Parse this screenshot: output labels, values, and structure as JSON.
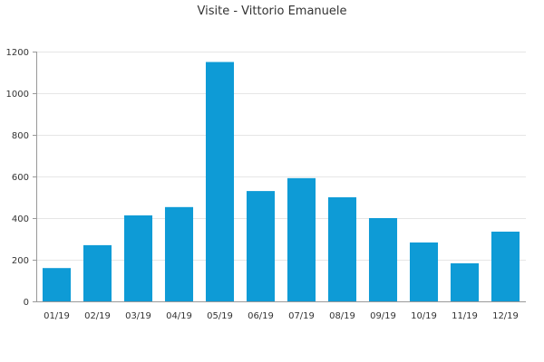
{
  "chart_data": {
    "type": "bar",
    "title": "Visite - Vittorio Emanuele",
    "xlabel": "",
    "ylabel": "",
    "categories": [
      "01/19",
      "02/19",
      "03/19",
      "04/19",
      "05/19",
      "06/19",
      "07/19",
      "08/19",
      "09/19",
      "10/19",
      "11/19",
      "12/19"
    ],
    "values": [
      160,
      270,
      413,
      453,
      1150,
      530,
      592,
      500,
      400,
      283,
      183,
      335
    ],
    "ylim": [
      0,
      1200
    ],
    "yticks": [
      0,
      200,
      400,
      600,
      800,
      1000,
      1200
    ],
    "grid": true,
    "legend": "none",
    "bar_color": "#0e9bd6",
    "grid_color": "#e6e6e6",
    "axis_color": "#999999"
  }
}
